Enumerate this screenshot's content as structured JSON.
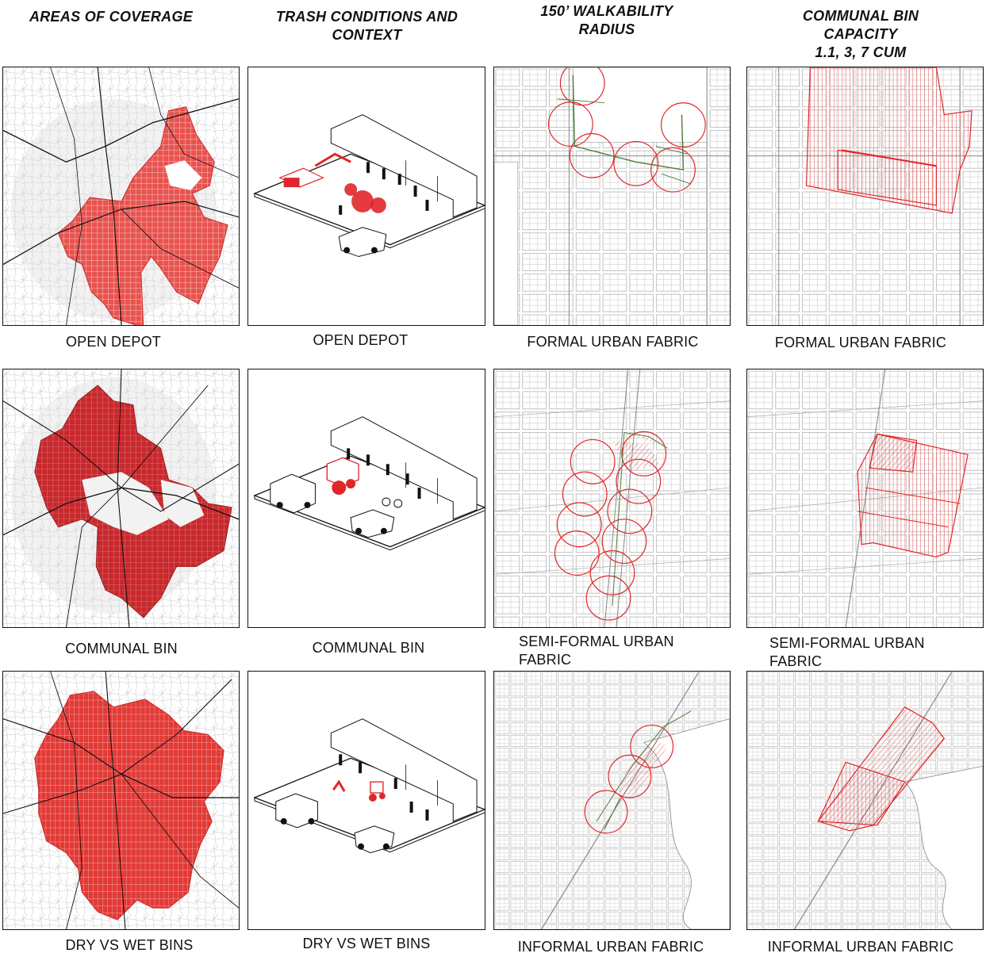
{
  "columns": [
    {
      "title_lines": [
        "AREAS OF COVERAGE"
      ]
    },
    {
      "title_lines": [
        "TRASH CONDITIONS AND",
        "CONTEXT"
      ]
    },
    {
      "title_lines": [
        "150’  WALKABILITY",
        "RADIUS"
      ]
    },
    {
      "title_lines": [
        "COMMUNAL BIN",
        "CAPACITY",
        "1.1, 3, 7 CUM"
      ]
    }
  ],
  "rows": [
    {
      "captions": [
        "OPEN DEPOT",
        "OPEN DEPOT",
        "FORMAL URBAN FABRIC",
        "FORMAL URBAN FABRIC"
      ]
    },
    {
      "captions": [
        "COMMUNAL BIN",
        "COMMUNAL BIN",
        "SEMI-FORMAL URBAN",
        "SEMI-FORMAL URBAN"
      ],
      "captions_line2": [
        "",
        "",
        "FABRIC",
        "FABRIC"
      ]
    },
    {
      "captions": [
        "DRY VS WET BINS",
        "DRY VS WET BINS",
        "INFORMAL URBAN FABRIC",
        "INFORMAL URBAN FABRIC"
      ]
    }
  ],
  "colors": {
    "coverage_light": "#e8534f",
    "coverage_dark": "#c8282c",
    "accent_red": "#e0262a",
    "walk_green": "#4b7a3a",
    "line": "#111111"
  }
}
